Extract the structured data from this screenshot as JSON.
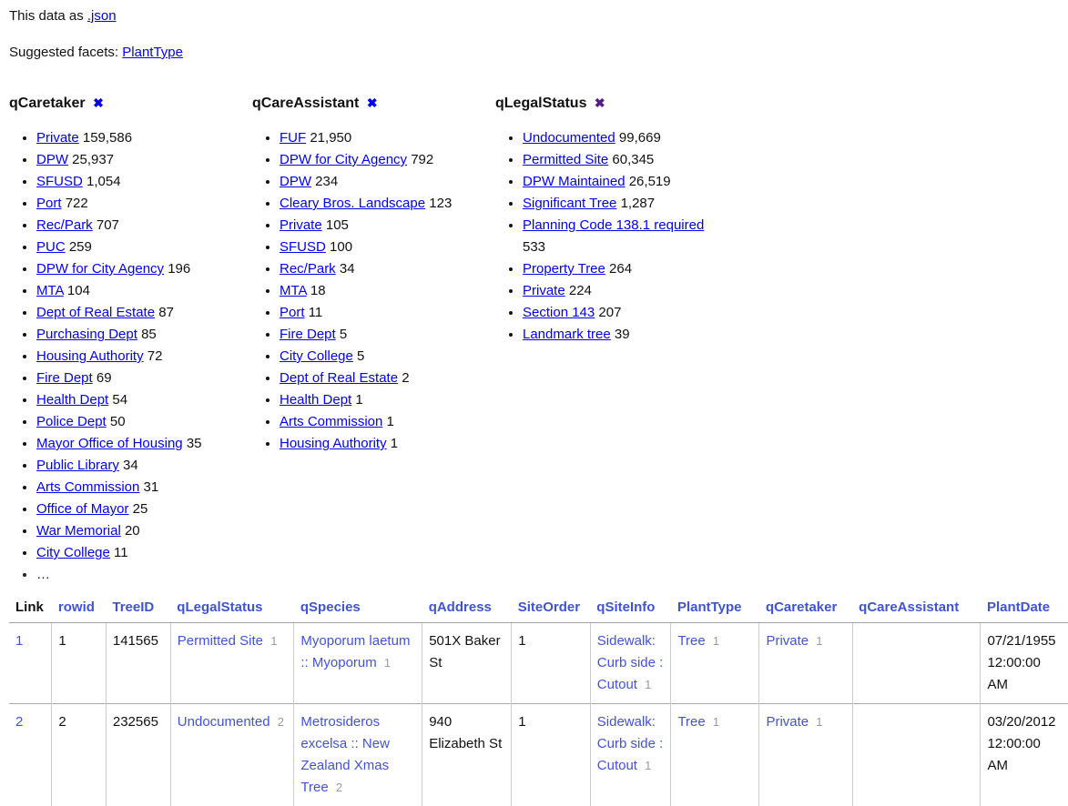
{
  "page": {
    "data_as_label": "This data as",
    "json_link": ".json",
    "suggested_facets_label": "Suggested facets:",
    "suggested_facet_link": "PlantType",
    "remove_icon": "✖",
    "more_label": "…"
  },
  "colors": {
    "facet_link": "#0000ee",
    "visited_link": "#551a8b",
    "table_link": "#4053d5",
    "fk_id_grey": "#9a9a9a"
  },
  "facets": [
    {
      "name": "qCaretaker",
      "remove_visited": false,
      "has_more": true,
      "items": [
        {
          "label": "Private",
          "count": "159,586"
        },
        {
          "label": "DPW",
          "count": "25,937"
        },
        {
          "label": "SFUSD",
          "count": "1,054"
        },
        {
          "label": "Port",
          "count": "722"
        },
        {
          "label": "Rec/Park",
          "count": "707"
        },
        {
          "label": "PUC",
          "count": "259"
        },
        {
          "label": "DPW for City Agency",
          "count": "196"
        },
        {
          "label": "MTA",
          "count": "104"
        },
        {
          "label": "Dept of Real Estate",
          "count": "87"
        },
        {
          "label": "Purchasing Dept",
          "count": "85"
        },
        {
          "label": "Housing Authority",
          "count": "72"
        },
        {
          "label": "Fire Dept",
          "count": "69"
        },
        {
          "label": "Health Dept",
          "count": "54"
        },
        {
          "label": "Police Dept",
          "count": "50"
        },
        {
          "label": "Mayor Office of Housing",
          "count": "35"
        },
        {
          "label": "Public Library",
          "count": "34"
        },
        {
          "label": "Arts Commission",
          "count": "31"
        },
        {
          "label": "Office of Mayor",
          "count": "25"
        },
        {
          "label": "War Memorial",
          "count": "20"
        },
        {
          "label": "City College",
          "count": "11"
        }
      ]
    },
    {
      "name": "qCareAssistant",
      "remove_visited": false,
      "has_more": false,
      "items": [
        {
          "label": "FUF",
          "count": "21,950"
        },
        {
          "label": "DPW for City Agency",
          "count": "792"
        },
        {
          "label": "DPW",
          "count": "234"
        },
        {
          "label": "Cleary Bros. Landscape",
          "count": "123"
        },
        {
          "label": "Private",
          "count": "105"
        },
        {
          "label": "SFUSD",
          "count": "100"
        },
        {
          "label": "Rec/Park",
          "count": "34"
        },
        {
          "label": "MTA",
          "count": "18"
        },
        {
          "label": "Port",
          "count": "11"
        },
        {
          "label": "Fire Dept",
          "count": "5"
        },
        {
          "label": "City College",
          "count": "5"
        },
        {
          "label": "Dept of Real Estate",
          "count": "2"
        },
        {
          "label": "Health Dept",
          "count": "1"
        },
        {
          "label": "Arts Commission",
          "count": "1"
        },
        {
          "label": "Housing Authority",
          "count": "1"
        }
      ]
    },
    {
      "name": "qLegalStatus",
      "remove_visited": true,
      "has_more": false,
      "items": [
        {
          "label": "Undocumented",
          "count": "99,669"
        },
        {
          "label": "Permitted Site",
          "count": "60,345"
        },
        {
          "label": "DPW Maintained",
          "count": "26,519"
        },
        {
          "label": "Significant Tree",
          "count": "1,287"
        },
        {
          "label": "Planning Code 138.1 required",
          "count": "533"
        },
        {
          "label": "Property Tree",
          "count": "264"
        },
        {
          "label": "Private",
          "count": "224"
        },
        {
          "label": "Section 143",
          "count": "207"
        },
        {
          "label": "Landmark tree",
          "count": "39"
        }
      ]
    }
  ],
  "table": {
    "columns": [
      {
        "label": "Link",
        "is_link": false
      },
      {
        "label": "rowid",
        "is_link": true
      },
      {
        "label": "TreeID",
        "is_link": true
      },
      {
        "label": "qLegalStatus",
        "is_link": true
      },
      {
        "label": "qSpecies",
        "is_link": true
      },
      {
        "label": "qAddress",
        "is_link": true
      },
      {
        "label": "SiteOrder",
        "is_link": true
      },
      {
        "label": "qSiteInfo",
        "is_link": true
      },
      {
        "label": "PlantType",
        "is_link": true
      },
      {
        "label": "qCaretaker",
        "is_link": true
      },
      {
        "label": "qCareAssistant",
        "is_link": true
      },
      {
        "label": "PlantDate",
        "is_link": true
      }
    ],
    "rows": [
      [
        {
          "t": "link",
          "v": "1"
        },
        {
          "t": "text",
          "v": "1"
        },
        {
          "t": "text",
          "v": "141565"
        },
        {
          "t": "fk",
          "v": "Permitted Site",
          "id": "1"
        },
        {
          "t": "fk",
          "v": "Myoporum laetum :: Myoporum",
          "id": "1"
        },
        {
          "t": "text",
          "v": "501X Baker St"
        },
        {
          "t": "text",
          "v": "1"
        },
        {
          "t": "fk",
          "v": "Sidewalk: Curb side : Cutout",
          "id": "1"
        },
        {
          "t": "fk",
          "v": "Tree",
          "id": "1"
        },
        {
          "t": "fk",
          "v": "Private",
          "id": "1"
        },
        {
          "t": "text",
          "v": ""
        },
        {
          "t": "text",
          "v": "07/21/1955 12:00:00 AM"
        }
      ],
      [
        {
          "t": "link",
          "v": "2"
        },
        {
          "t": "text",
          "v": "2"
        },
        {
          "t": "text",
          "v": "232565"
        },
        {
          "t": "fk",
          "v": "Undocumented",
          "id": "2"
        },
        {
          "t": "fk",
          "v": "Metrosideros excelsa :: New Zealand Xmas Tree",
          "id": "2"
        },
        {
          "t": "text",
          "v": "940 Elizabeth St"
        },
        {
          "t": "text",
          "v": "1"
        },
        {
          "t": "fk",
          "v": "Sidewalk: Curb side : Cutout",
          "id": "1"
        },
        {
          "t": "fk",
          "v": "Tree",
          "id": "1"
        },
        {
          "t": "fk",
          "v": "Private",
          "id": "1"
        },
        {
          "t": "text",
          "v": ""
        },
        {
          "t": "text",
          "v": "03/20/2012 12:00:00 AM"
        }
      ]
    ]
  }
}
